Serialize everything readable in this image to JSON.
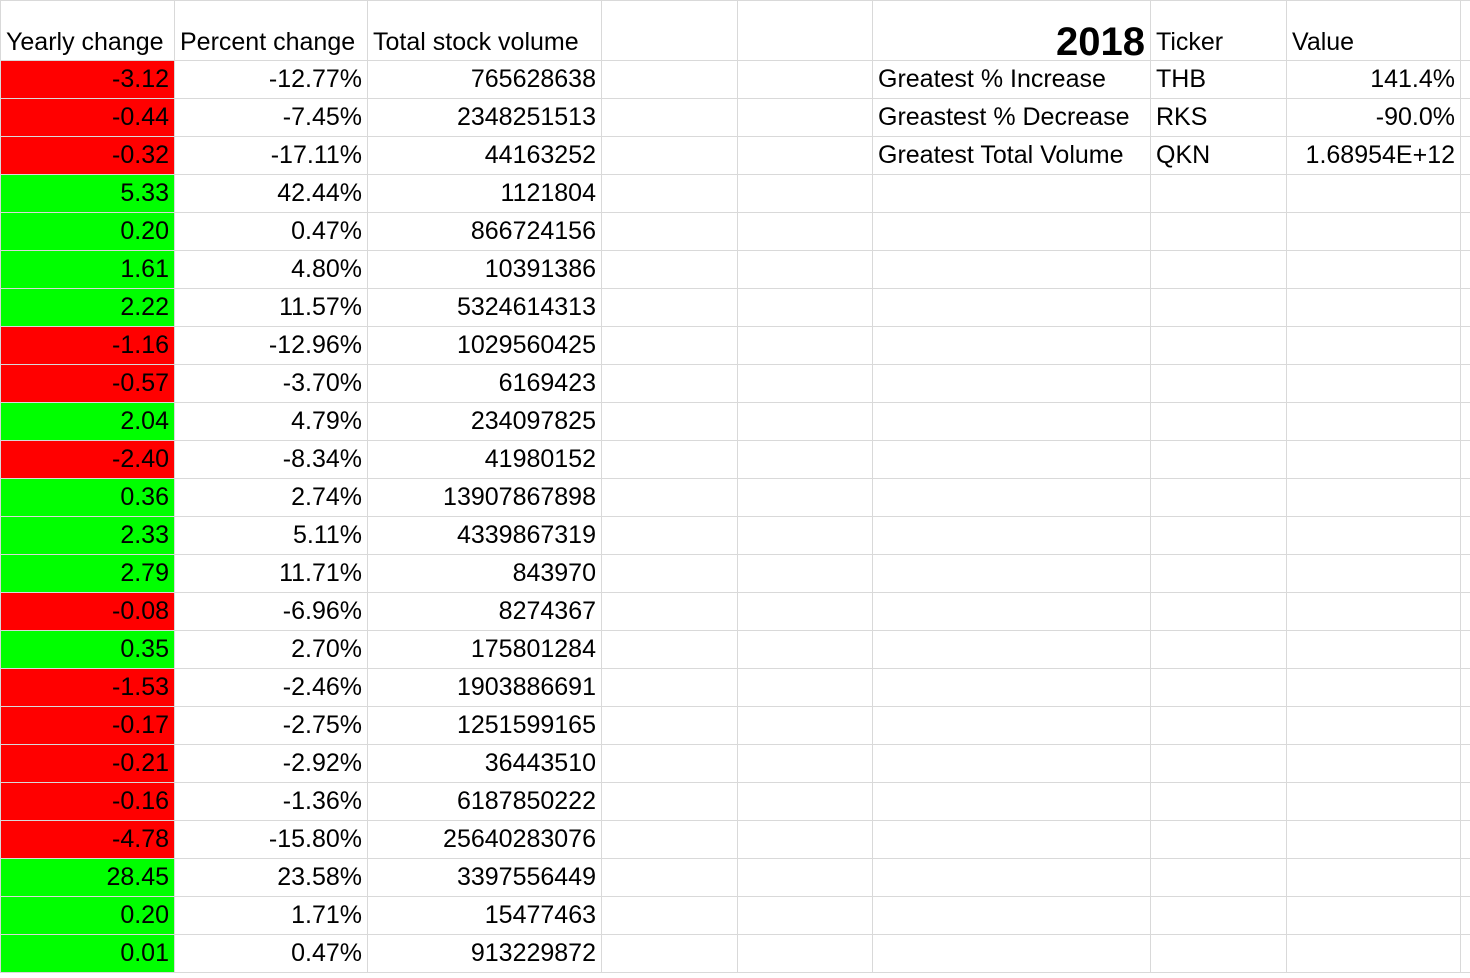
{
  "sheet": {
    "headers": {
      "yearly_change": "Yearly change",
      "percent_change": "Percent change",
      "total_volume": "Total stock volume",
      "year": "2018",
      "ticker": "Ticker",
      "value": "Value"
    },
    "rows": [
      {
        "yearly_change": "-3.12",
        "percent_change": "-12.77%",
        "total_volume": "765628638",
        "status": "negative"
      },
      {
        "yearly_change": "-0.44",
        "percent_change": "-7.45%",
        "total_volume": "2348251513",
        "status": "negative"
      },
      {
        "yearly_change": "-0.32",
        "percent_change": "-17.11%",
        "total_volume": "44163252",
        "status": "negative"
      },
      {
        "yearly_change": "5.33",
        "percent_change": "42.44%",
        "total_volume": "1121804",
        "status": "positive"
      },
      {
        "yearly_change": "0.20",
        "percent_change": "0.47%",
        "total_volume": "866724156",
        "status": "positive"
      },
      {
        "yearly_change": "1.61",
        "percent_change": "4.80%",
        "total_volume": "10391386",
        "status": "positive"
      },
      {
        "yearly_change": "2.22",
        "percent_change": "11.57%",
        "total_volume": "5324614313",
        "status": "positive"
      },
      {
        "yearly_change": "-1.16",
        "percent_change": "-12.96%",
        "total_volume": "1029560425",
        "status": "negative"
      },
      {
        "yearly_change": "-0.57",
        "percent_change": "-3.70%",
        "total_volume": "6169423",
        "status": "negative"
      },
      {
        "yearly_change": "2.04",
        "percent_change": "4.79%",
        "total_volume": "234097825",
        "status": "positive"
      },
      {
        "yearly_change": "-2.40",
        "percent_change": "-8.34%",
        "total_volume": "41980152",
        "status": "negative"
      },
      {
        "yearly_change": "0.36",
        "percent_change": "2.74%",
        "total_volume": "13907867898",
        "status": "positive"
      },
      {
        "yearly_change": "2.33",
        "percent_change": "5.11%",
        "total_volume": "4339867319",
        "status": "positive"
      },
      {
        "yearly_change": "2.79",
        "percent_change": "11.71%",
        "total_volume": "843970",
        "status": "positive"
      },
      {
        "yearly_change": "-0.08",
        "percent_change": "-6.96%",
        "total_volume": "8274367",
        "status": "negative"
      },
      {
        "yearly_change": "0.35",
        "percent_change": "2.70%",
        "total_volume": "175801284",
        "status": "positive"
      },
      {
        "yearly_change": "-1.53",
        "percent_change": "-2.46%",
        "total_volume": "1903886691",
        "status": "negative"
      },
      {
        "yearly_change": "-0.17",
        "percent_change": "-2.75%",
        "total_volume": "1251599165",
        "status": "negative"
      },
      {
        "yearly_change": "-0.21",
        "percent_change": "-2.92%",
        "total_volume": "36443510",
        "status": "negative"
      },
      {
        "yearly_change": "-0.16",
        "percent_change": "-1.36%",
        "total_volume": "6187850222",
        "status": "negative"
      },
      {
        "yearly_change": "-4.78",
        "percent_change": "-15.80%",
        "total_volume": "25640283076",
        "status": "negative"
      },
      {
        "yearly_change": "28.45",
        "percent_change": "23.58%",
        "total_volume": "3397556449",
        "status": "positive"
      },
      {
        "yearly_change": "0.20",
        "percent_change": "1.71%",
        "total_volume": "15477463",
        "status": "positive"
      },
      {
        "yearly_change": "0.01",
        "percent_change": "0.47%",
        "total_volume": "913229872",
        "status": "positive"
      }
    ],
    "summary": [
      {
        "label": "Greatest % Increase",
        "ticker": "THB",
        "value": "141.4%"
      },
      {
        "label": "Greastest % Decrease",
        "ticker": "RKS",
        "value": "-90.0%"
      },
      {
        "label": "Greatest Total Volume",
        "ticker": "QKN",
        "value": "1.68954E+12"
      }
    ]
  },
  "colors": {
    "positive": "#00ff00",
    "negative": "#ff0000",
    "gridline": "#d9d9d9"
  }
}
